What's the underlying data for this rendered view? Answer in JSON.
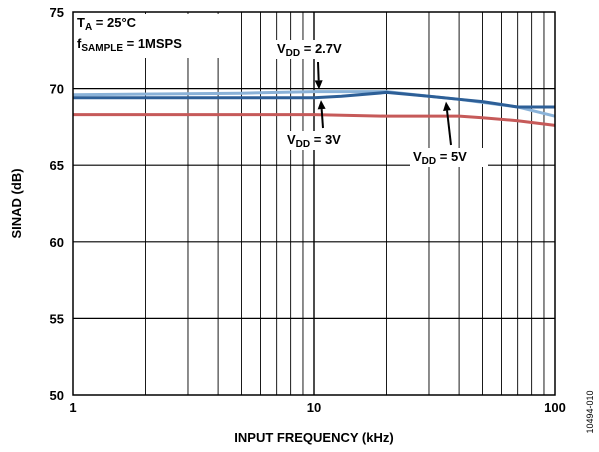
{
  "chart_data": {
    "type": "line",
    "title": "",
    "xlabel": "INPUT FREQUENCY (kHz)",
    "ylabel": "SINAD (dB)",
    "x_scale": "log",
    "xlim": [
      1,
      100
    ],
    "ylim": [
      50,
      75
    ],
    "x_ticks": [
      1,
      10,
      100
    ],
    "x_tick_labels": [
      "1",
      "10",
      "100"
    ],
    "y_ticks": [
      50,
      55,
      60,
      65,
      70,
      75
    ],
    "y_tick_labels": [
      "50",
      "55",
      "60",
      "65",
      "70",
      "75"
    ],
    "grid": true,
    "legend": "none",
    "conditions": {
      "ta": {
        "main": "T",
        "sub": "A",
        "rest": " = 25°C"
      },
      "fs": {
        "main": "f",
        "sub": "SAMPLE",
        "rest": " = 1MSPS"
      }
    },
    "series": [
      {
        "color": "#8ab2d8",
        "label": {
          "main": "V",
          "sub": "DD",
          "rest": " = 2.7V"
        },
        "points": [
          [
            1,
            69.6
          ],
          [
            5,
            69.7
          ],
          [
            10,
            69.8
          ],
          [
            20,
            69.8
          ],
          [
            30,
            69.5
          ],
          [
            40,
            69.3
          ],
          [
            50,
            69.1
          ],
          [
            70,
            68.8
          ],
          [
            100,
            68.2
          ]
        ]
      },
      {
        "color": "#2d5f97",
        "label": {
          "main": "V",
          "sub": "DD",
          "rest": " = 3V"
        },
        "points": [
          [
            1,
            69.4
          ],
          [
            5,
            69.4
          ],
          [
            10,
            69.4
          ],
          [
            13,
            69.5
          ],
          [
            20,
            69.75
          ],
          [
            30,
            69.5
          ],
          [
            40,
            69.3
          ],
          [
            50,
            69.15
          ],
          [
            70,
            68.8
          ],
          [
            100,
            68.8
          ]
        ]
      },
      {
        "color": "#c65a59",
        "label": {
          "main": "V",
          "sub": "DD",
          "rest": " = 5V"
        },
        "points": [
          [
            1,
            68.3
          ],
          [
            5,
            68.3
          ],
          [
            10,
            68.3
          ],
          [
            20,
            68.2
          ],
          [
            40,
            68.2
          ],
          [
            50,
            68.1
          ],
          [
            70,
            67.9
          ],
          [
            100,
            67.6
          ]
        ]
      }
    ],
    "figure_id": "10494-010"
  }
}
